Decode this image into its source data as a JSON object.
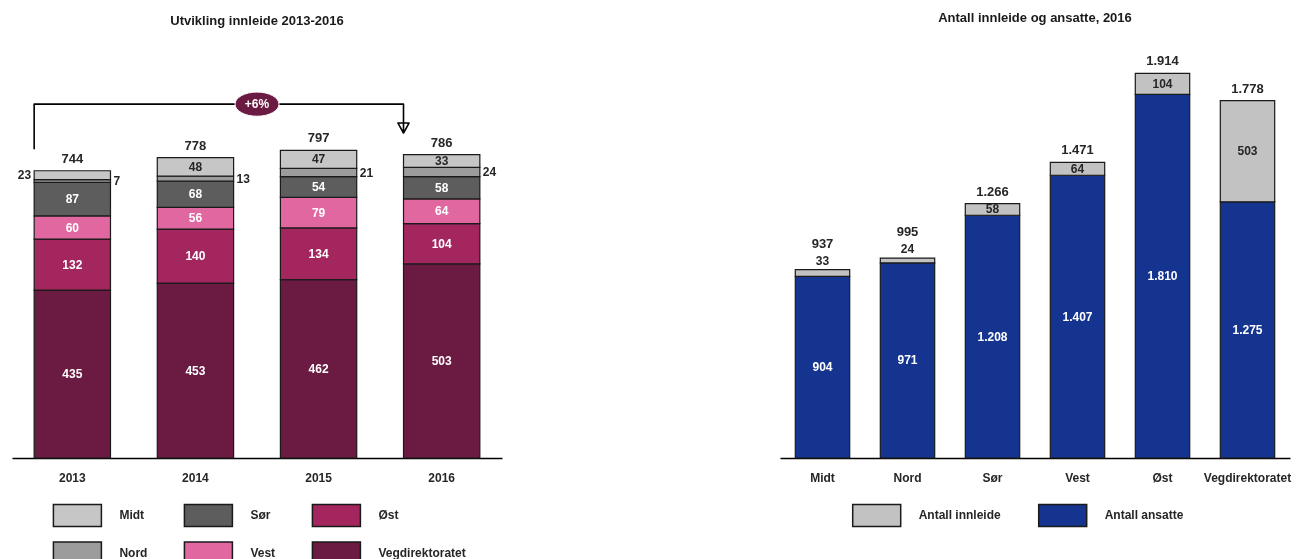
{
  "chart_data": [
    {
      "type": "bar",
      "title": "Utvikling innleide 2013-2016",
      "categories": [
        "2013",
        "2014",
        "2015",
        "2016"
      ],
      "stacked": true,
      "series": [
        {
          "name": "Vegdirektoratet",
          "color": "#6b1b42",
          "values": [
            435,
            453,
            462,
            503
          ]
        },
        {
          "name": "Øst",
          "color": "#a4265e",
          "values": [
            132,
            140,
            134,
            104
          ]
        },
        {
          "name": "Vest",
          "color": "#e0679f",
          "values": [
            60,
            56,
            79,
            64
          ]
        },
        {
          "name": "Sør",
          "color": "#5d5d5d",
          "values": [
            87,
            68,
            54,
            58
          ]
        },
        {
          "name": "Nord",
          "color": "#9c9c9c",
          "values": [
            7,
            13,
            21,
            24
          ]
        },
        {
          "name": "Midt",
          "color": "#c6c6c6",
          "values": [
            23,
            48,
            47,
            33
          ]
        }
      ],
      "data_labels": true,
      "totals": [
        "744",
        "778",
        "797",
        "786"
      ],
      "annotations": [
        "+6%"
      ],
      "legend": "bottom",
      "tick_labels": "x"
    },
    {
      "type": "bar",
      "title": "Antall innleide og ansatte, 2016",
      "categories": [
        "Midt",
        "Nord",
        "Sør",
        "Vest",
        "Øst",
        "Vegdirektoratet"
      ],
      "stacked": true,
      "series": [
        {
          "name": "Antall ansatte",
          "color": "#15348f",
          "values": [
            904,
            971,
            1208,
            1407,
            1810,
            1275
          ],
          "value_labels": [
            "904",
            "971",
            "1.208",
            "1.407",
            "1.810",
            "1.275"
          ]
        },
        {
          "name": "Antall innleide",
          "color": "#c2c2c2",
          "values": [
            33,
            24,
            58,
            64,
            104,
            503
          ],
          "value_labels": [
            "33",
            "24",
            "58",
            "64",
            "104",
            "503"
          ]
        }
      ],
      "totals": [
        "937",
        "995",
        "1.266",
        "1.471",
        "1.914",
        "1.778"
      ],
      "legend": "bottom",
      "tick_labels": "x"
    }
  ]
}
